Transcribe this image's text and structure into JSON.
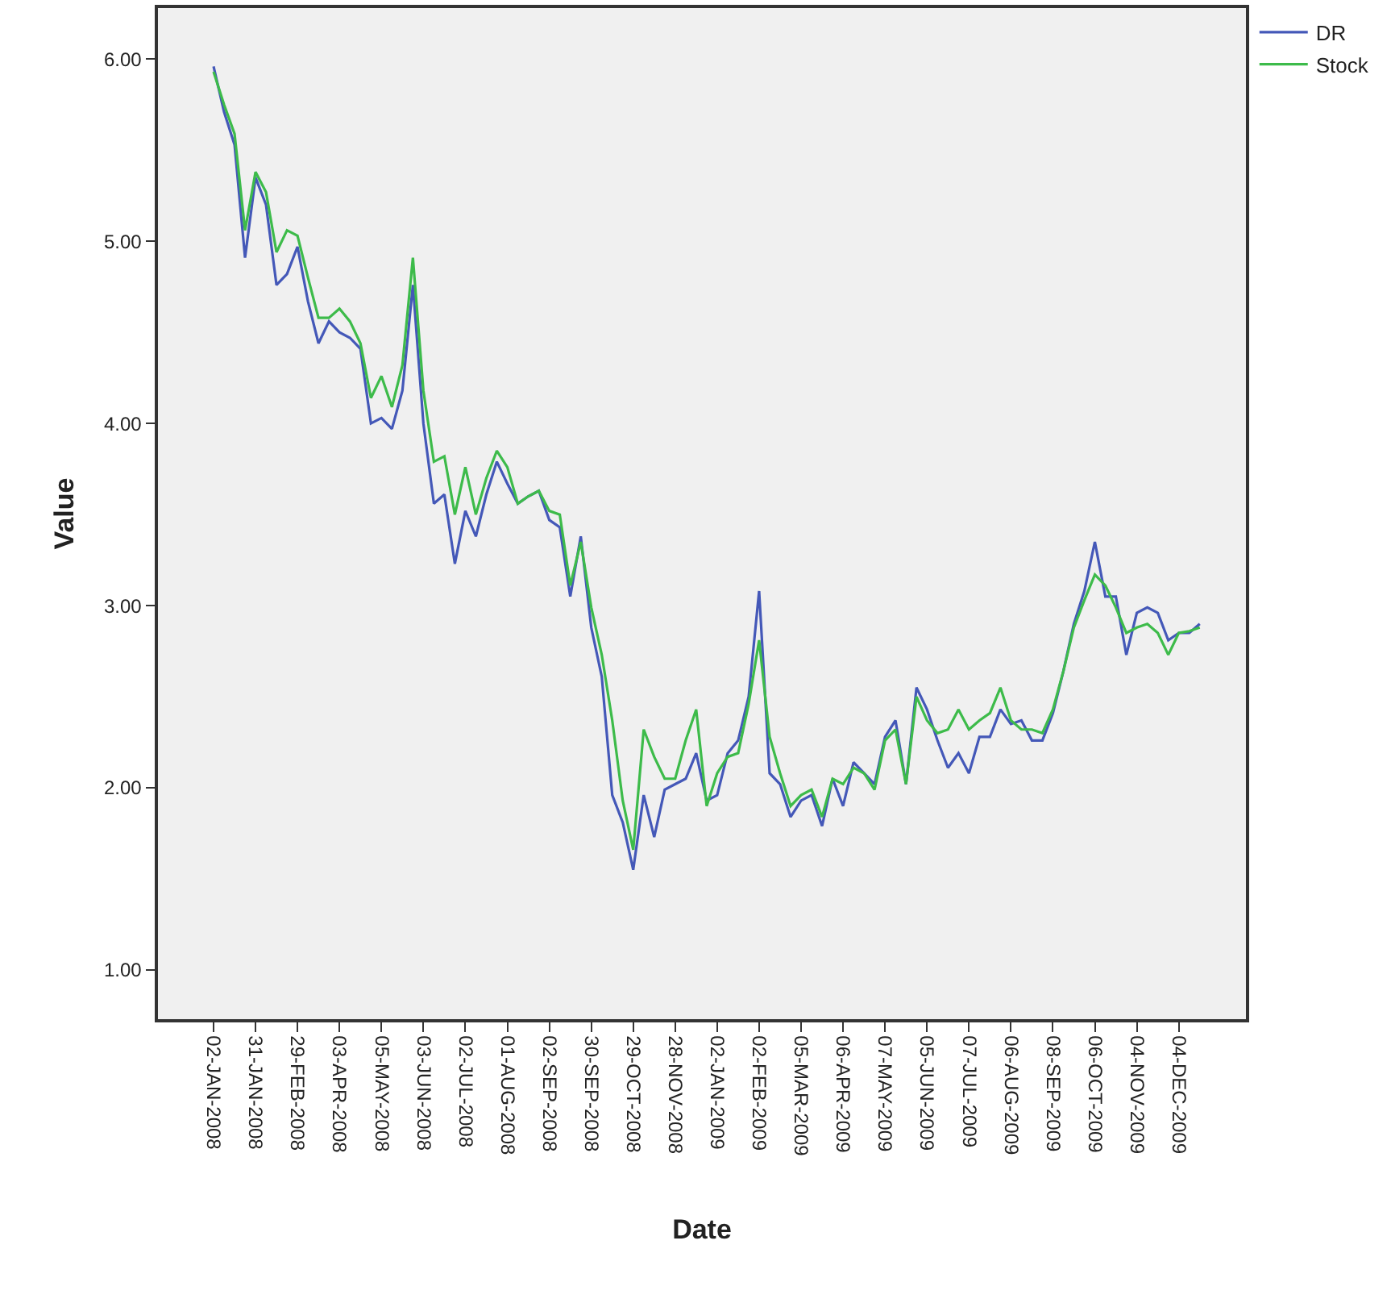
{
  "chart_data": {
    "type": "line",
    "xlabel": "Date",
    "ylabel": "Value",
    "categories": [
      "02-JAN-2008",
      null,
      null,
      null,
      "31-JAN-2008",
      null,
      null,
      null,
      "29-FEB-2008",
      null,
      null,
      null,
      "03-APR-2008",
      null,
      null,
      null,
      "05-MAY-2008",
      null,
      null,
      null,
      "03-JUN-2008",
      null,
      null,
      null,
      "02-JUL-2008",
      null,
      null,
      null,
      "01-AUG-2008",
      null,
      null,
      null,
      "02-SEP-2008",
      null,
      null,
      null,
      "30-SEP-2008",
      null,
      null,
      null,
      "29-OCT-2008",
      null,
      null,
      null,
      "28-NOV-2008",
      null,
      null,
      null,
      "02-JAN-2009",
      null,
      null,
      null,
      "02-FEB-2009",
      null,
      null,
      null,
      "05-MAR-2009",
      null,
      null,
      null,
      "06-APR-2009",
      null,
      null,
      null,
      "07-MAY-2009",
      null,
      null,
      null,
      "05-JUN-2009",
      null,
      null,
      null,
      "07-JUL-2009",
      null,
      null,
      null,
      "06-AUG-2009",
      null,
      null,
      null,
      "08-SEP-2009",
      null,
      null,
      null,
      "06-OCT-2009",
      null,
      null,
      null,
      "04-NOV-2009",
      null,
      null,
      null,
      "04-DEC-2009",
      null,
      null
    ],
    "series": [
      {
        "name": "DR",
        "color": "#4458b8",
        "values": [
          5.96,
          5.71,
          5.53,
          4.91,
          5.35,
          5.2,
          4.76,
          4.82,
          4.97,
          4.67,
          4.44,
          4.56,
          4.5,
          4.47,
          4.41,
          4.0,
          4.03,
          3.97,
          4.18,
          4.76,
          4.0,
          3.56,
          3.61,
          3.23,
          3.52,
          3.38,
          3.61,
          3.79,
          3.67,
          3.56,
          3.6,
          3.63,
          3.47,
          3.43,
          3.05,
          3.38,
          2.88,
          2.61,
          1.96,
          1.81,
          1.55,
          1.96,
          1.73,
          1.99,
          2.02,
          2.05,
          2.19,
          1.93,
          1.96,
          2.19,
          2.26,
          2.5,
          3.08,
          2.08,
          2.02,
          1.84,
          1.93,
          1.96,
          1.79,
          2.05,
          1.9,
          2.14,
          2.08,
          2.02,
          2.28,
          2.37,
          2.02,
          2.55,
          2.43,
          2.26,
          2.11,
          2.19,
          2.08,
          2.28,
          2.28,
          2.43,
          2.35,
          2.37,
          2.26,
          2.26,
          2.41,
          2.64,
          2.9,
          3.08,
          3.35,
          3.05,
          3.05,
          2.73,
          2.96,
          2.99,
          2.96,
          2.81,
          2.85,
          2.85,
          2.9
        ]
      },
      {
        "name": "Stock",
        "color": "#3dbb4a",
        "values": [
          5.93,
          5.75,
          5.59,
          5.06,
          5.38,
          5.27,
          4.94,
          5.06,
          5.03,
          4.8,
          4.58,
          4.58,
          4.63,
          4.56,
          4.44,
          4.14,
          4.26,
          4.09,
          4.32,
          4.91,
          4.18,
          3.79,
          3.82,
          3.5,
          3.76,
          3.5,
          3.7,
          3.85,
          3.76,
          3.56,
          3.6,
          3.63,
          3.52,
          3.5,
          3.11,
          3.35,
          2.99,
          2.73,
          2.37,
          1.93,
          1.66,
          2.32,
          2.17,
          2.05,
          2.05,
          2.26,
          2.43,
          1.9,
          2.08,
          2.17,
          2.19,
          2.46,
          2.81,
          2.28,
          2.08,
          1.9,
          1.96,
          1.99,
          1.84,
          2.05,
          2.02,
          2.11,
          2.08,
          1.99,
          2.26,
          2.32,
          2.02,
          2.5,
          2.37,
          2.3,
          2.32,
          2.43,
          2.32,
          2.37,
          2.41,
          2.55,
          2.37,
          2.32,
          2.32,
          2.3,
          2.43,
          2.64,
          2.88,
          3.03,
          3.17,
          3.11,
          2.99,
          2.85,
          2.88,
          2.9,
          2.85,
          2.73,
          2.85,
          2.86,
          2.88
        ]
      }
    ],
    "ylim": [
      0.73,
      6.28
    ],
    "yticks": [
      {
        "value": 1,
        "label": "1.00"
      },
      {
        "value": 2,
        "label": "2.00"
      },
      {
        "value": 3,
        "label": "3.00"
      },
      {
        "value": 4,
        "label": "4.00"
      },
      {
        "value": 5,
        "label": "5.00"
      },
      {
        "value": 6,
        "label": "6.00"
      }
    ],
    "grid": false,
    "legend": "top right",
    "marker": "none",
    "line_style": "solid"
  }
}
